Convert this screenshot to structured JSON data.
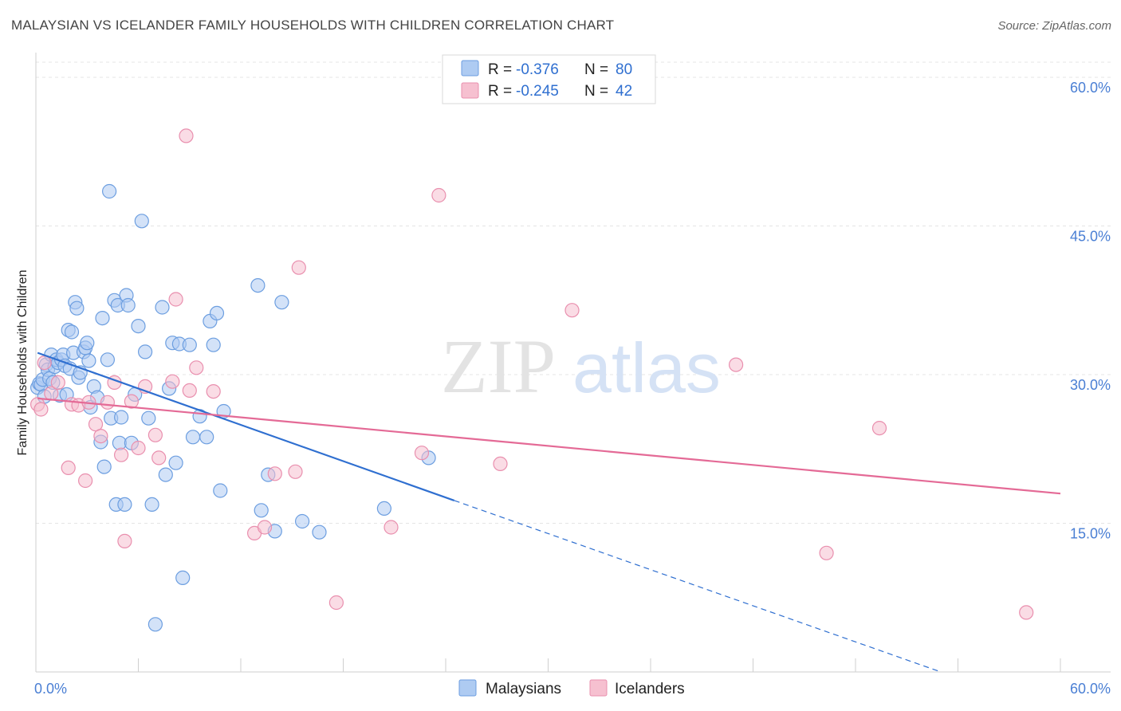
{
  "header": {
    "title": "MALAYSIAN VS ICELANDER FAMILY HOUSEHOLDS WITH CHILDREN CORRELATION CHART",
    "source": "Source: ZipAtlas.com"
  },
  "watermark": {
    "zip": "ZIP",
    "atlas": "atlas"
  },
  "colors": {
    "blue_fill": "#aecbf2",
    "blue_stroke": "#6c9ee0",
    "blue_line": "#2f6fd0",
    "pink_fill": "#f6c0d0",
    "pink_stroke": "#e98fae",
    "pink_line": "#e46a96"
  },
  "legend": {
    "rows": [
      {
        "r_label": "R =",
        "r_value": "-0.376",
        "n_label": "N =",
        "n_value": "80"
      },
      {
        "r_label": "R =",
        "r_value": "-0.245",
        "n_label": "N =",
        "n_value": "42"
      }
    ],
    "bottom": [
      "Malaysians",
      "Icelanders"
    ]
  },
  "chart_data": {
    "type": "scatter",
    "title": "MALAYSIAN VS ICELANDER FAMILY HOUSEHOLDS WITH CHILDREN CORRELATION CHART",
    "ylabel": "Family Households with Children",
    "xlabel": "",
    "xlim": [
      0,
      60
    ],
    "ylim": [
      0,
      60
    ],
    "x_tick_labels": [
      "0.0%",
      "60.0%"
    ],
    "y_ticks": [
      {
        "value": 15,
        "label": "15.0%"
      },
      {
        "value": 30,
        "label": "30.0%"
      },
      {
        "value": 45,
        "label": "45.0%"
      },
      {
        "value": 60,
        "label": "60.0%"
      }
    ],
    "series": [
      {
        "name": "Malaysians",
        "r": -0.376,
        "n": 80,
        "trend": {
          "x0": 0.1,
          "y0": 32.2,
          "x1": 24.5,
          "y1": 17.3,
          "dash_x1": 53.0,
          "dash_y1": 0
        },
        "points": [
          [
            0.1,
            28.7
          ],
          [
            0.2,
            29.1
          ],
          [
            0.3,
            29.0
          ],
          [
            0.4,
            29.5
          ],
          [
            0.5,
            27.8
          ],
          [
            0.6,
            31.0
          ],
          [
            0.7,
            30.5
          ],
          [
            0.8,
            29.6
          ],
          [
            0.9,
            32.0
          ],
          [
            1.0,
            29.2
          ],
          [
            1.1,
            30.8
          ],
          [
            1.2,
            31.5
          ],
          [
            1.3,
            31.2
          ],
          [
            1.4,
            27.9
          ],
          [
            1.5,
            31.5
          ],
          [
            1.6,
            32.0
          ],
          [
            1.7,
            30.9
          ],
          [
            1.8,
            28.0
          ],
          [
            1.9,
            34.5
          ],
          [
            2.0,
            30.6
          ],
          [
            2.1,
            34.3
          ],
          [
            2.2,
            32.2
          ],
          [
            2.3,
            37.3
          ],
          [
            2.4,
            36.7
          ],
          [
            2.5,
            29.7
          ],
          [
            2.6,
            30.2
          ],
          [
            2.8,
            32.3
          ],
          [
            2.9,
            32.7
          ],
          [
            3.0,
            33.2
          ],
          [
            3.1,
            31.4
          ],
          [
            3.2,
            26.7
          ],
          [
            3.4,
            28.8
          ],
          [
            3.6,
            27.7
          ],
          [
            3.8,
            23.2
          ],
          [
            3.9,
            35.7
          ],
          [
            4.0,
            20.7
          ],
          [
            4.2,
            31.5
          ],
          [
            4.3,
            48.5
          ],
          [
            4.4,
            25.6
          ],
          [
            4.6,
            37.5
          ],
          [
            4.7,
            16.9
          ],
          [
            4.8,
            37.0
          ],
          [
            4.9,
            23.1
          ],
          [
            5.0,
            25.7
          ],
          [
            5.2,
            16.9
          ],
          [
            5.3,
            38.0
          ],
          [
            5.4,
            37.0
          ],
          [
            5.6,
            23.1
          ],
          [
            5.8,
            28.0
          ],
          [
            6.0,
            34.9
          ],
          [
            6.2,
            45.5
          ],
          [
            6.4,
            32.3
          ],
          [
            6.6,
            25.6
          ],
          [
            6.8,
            16.9
          ],
          [
            7.0,
            4.8
          ],
          [
            7.4,
            36.8
          ],
          [
            7.6,
            19.9
          ],
          [
            7.8,
            28.6
          ],
          [
            8.0,
            33.2
          ],
          [
            8.2,
            21.1
          ],
          [
            8.4,
            33.1
          ],
          [
            8.6,
            9.5
          ],
          [
            9.0,
            33.0
          ],
          [
            9.2,
            23.7
          ],
          [
            9.6,
            25.8
          ],
          [
            10.0,
            23.7
          ],
          [
            10.2,
            35.4
          ],
          [
            10.4,
            33.0
          ],
          [
            10.6,
            36.2
          ],
          [
            10.8,
            18.3
          ],
          [
            11.0,
            26.3
          ],
          [
            13.0,
            39.0
          ],
          [
            13.2,
            16.3
          ],
          [
            13.6,
            19.9
          ],
          [
            14.0,
            14.2
          ],
          [
            14.4,
            37.3
          ],
          [
            15.6,
            15.2
          ],
          [
            16.6,
            14.1
          ],
          [
            20.4,
            16.5
          ],
          [
            23.0,
            21.6
          ]
        ]
      },
      {
        "name": "Icelanders",
        "r": -0.245,
        "n": 42,
        "trend": {
          "x0": 0.1,
          "y0": 27.6,
          "x1": 60.0,
          "y1": 18.0
        },
        "points": [
          [
            0.1,
            27.0
          ],
          [
            0.5,
            31.2
          ],
          [
            0.9,
            28.1
          ],
          [
            1.3,
            29.2
          ],
          [
            1.9,
            20.6
          ],
          [
            2.1,
            27.0
          ],
          [
            2.5,
            26.9
          ],
          [
            2.9,
            19.3
          ],
          [
            3.1,
            27.2
          ],
          [
            3.5,
            25.0
          ],
          [
            3.8,
            23.8
          ],
          [
            4.2,
            27.2
          ],
          [
            4.6,
            29.2
          ],
          [
            5.0,
            21.9
          ],
          [
            5.2,
            13.2
          ],
          [
            5.6,
            27.3
          ],
          [
            6.0,
            22.6
          ],
          [
            6.4,
            28.8
          ],
          [
            7.0,
            23.9
          ],
          [
            7.2,
            21.6
          ],
          [
            8.0,
            29.3
          ],
          [
            8.2,
            37.6
          ],
          [
            8.8,
            54.1
          ],
          [
            9.0,
            28.4
          ],
          [
            9.4,
            30.7
          ],
          [
            10.4,
            28.3
          ],
          [
            12.8,
            14.0
          ],
          [
            13.4,
            14.6
          ],
          [
            14.0,
            20.0
          ],
          [
            15.2,
            20.2
          ],
          [
            15.4,
            40.8
          ],
          [
            17.6,
            7.0
          ],
          [
            20.8,
            14.6
          ],
          [
            22.6,
            22.1
          ],
          [
            23.6,
            48.1
          ],
          [
            27.2,
            21.0
          ],
          [
            31.4,
            36.5
          ],
          [
            41.0,
            31.0
          ],
          [
            46.3,
            12.0
          ],
          [
            49.4,
            24.6
          ],
          [
            58.0,
            6.0
          ],
          [
            0.3,
            26.5
          ]
        ]
      }
    ]
  }
}
